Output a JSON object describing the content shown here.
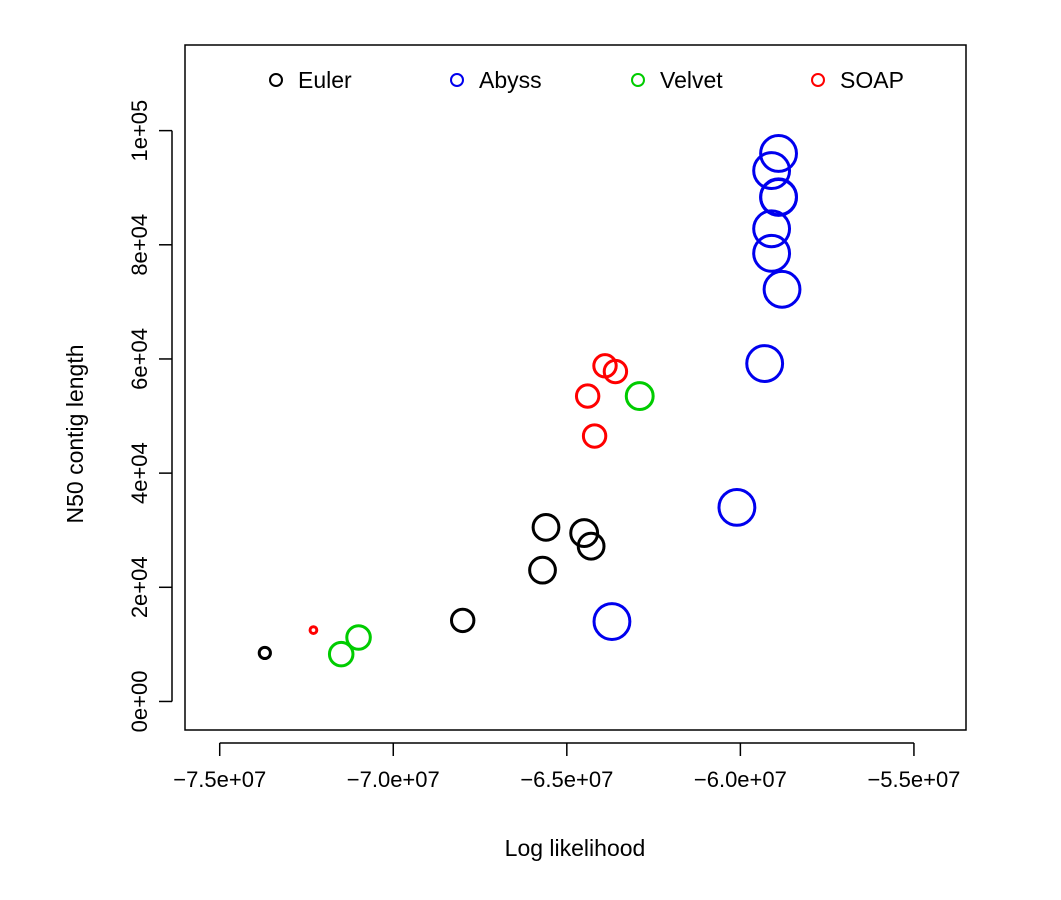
{
  "chart_data": {
    "type": "scatter",
    "xlabel": "Log likelihood",
    "ylabel": "N50 contig length",
    "xlim": [
      -76000000,
      -53500000
    ],
    "ylim": [
      -5000,
      115000
    ],
    "x_ticks": [
      -75000000,
      -70000000,
      -65000000,
      -60000000,
      -55000000
    ],
    "x_tick_labels": [
      "−7.5e+07",
      "−7.0e+07",
      "−6.5e+07",
      "−6.0e+07",
      "−5.5e+07"
    ],
    "y_ticks": [
      0,
      20000,
      40000,
      60000,
      80000,
      100000
    ],
    "y_tick_labels": [
      "0e+00",
      "2e+04",
      "4e+04",
      "6e+04",
      "8e+04",
      "1e+05"
    ],
    "grid": false,
    "legend_position": "top",
    "marker": "open-circle",
    "series": [
      {
        "name": "Euler",
        "color": "#000000",
        "points": [
          {
            "x": -73700000,
            "y": 8500,
            "size": 1
          },
          {
            "x": -68000000,
            "y": 14200,
            "size": 2
          },
          {
            "x": -65700000,
            "y": 23000,
            "size": 2.3
          },
          {
            "x": -65600000,
            "y": 30500,
            "size": 2.3
          },
          {
            "x": -64500000,
            "y": 29500,
            "size": 2.4
          },
          {
            "x": -64300000,
            "y": 27200,
            "size": 2.3
          }
        ]
      },
      {
        "name": "Abyss",
        "color": "#0000ee",
        "points": [
          {
            "x": -63700000,
            "y": 14000,
            "size": 3.2
          },
          {
            "x": -60100000,
            "y": 34000,
            "size": 3.2
          },
          {
            "x": -59300000,
            "y": 59200,
            "size": 3.2
          },
          {
            "x": -58800000,
            "y": 72200,
            "size": 3.2
          },
          {
            "x": -59100000,
            "y": 78500,
            "size": 3.2
          },
          {
            "x": -59100000,
            "y": 82800,
            "size": 3.2
          },
          {
            "x": -58900000,
            "y": 88300,
            "size": 3.2
          },
          {
            "x": -58900000,
            "y": 88400,
            "size": 3.2
          },
          {
            "x": -59100000,
            "y": 93000,
            "size": 3.2
          },
          {
            "x": -58900000,
            "y": 96000,
            "size": 3.2
          }
        ]
      },
      {
        "name": "Velvet",
        "color": "#00cc00",
        "points": [
          {
            "x": -71500000,
            "y": 8300,
            "size": 2.1
          },
          {
            "x": -71000000,
            "y": 11200,
            "size": 2.1
          },
          {
            "x": -62900000,
            "y": 53500,
            "size": 2.4
          }
        ]
      },
      {
        "name": "SOAP",
        "color": "#ff0000",
        "points": [
          {
            "x": -72300000,
            "y": 12500,
            "size": 0.6
          },
          {
            "x": -64200000,
            "y": 46500,
            "size": 2.0
          },
          {
            "x": -64400000,
            "y": 53500,
            "size": 2.0
          },
          {
            "x": -63900000,
            "y": 58800,
            "size": 2.0
          },
          {
            "x": -63600000,
            "y": 57800,
            "size": 2.0
          }
        ]
      }
    ]
  }
}
